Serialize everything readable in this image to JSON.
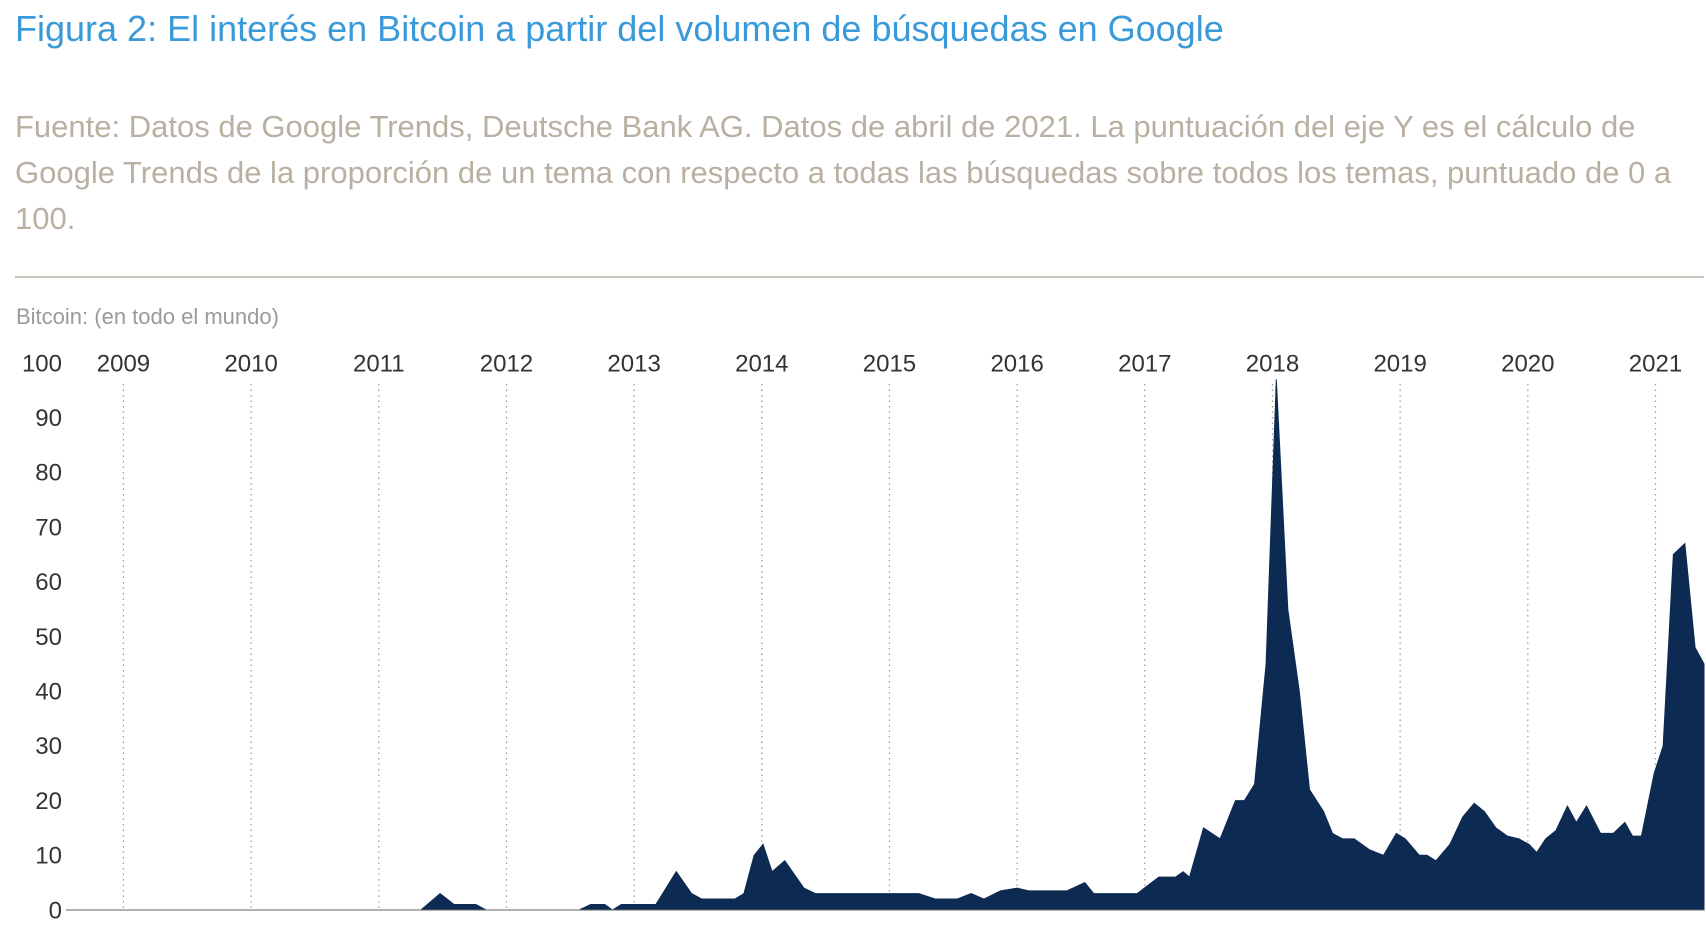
{
  "chart_data": {
    "type": "area",
    "title": "Figura 2: El interés en Bitcoin a partir del volumen de búsquedas en Google",
    "subtitle": "Fuente: Datos de Google Trends, Deutsche Bank AG. Datos de abril de 2021. La puntuación del eje Y es el cálculo de Google Trends de la proporción de un tema con respecto a todas las búsquedas sobre todos los temas, puntuado de 0 a 100.",
    "y_label": "Bitcoin: (en todo el mundo)",
    "color": "#0d2a52",
    "x": [
      2008.55,
      2011.33,
      2011.48,
      2011.59,
      2011.76,
      2011.84,
      2012.57,
      2012.66,
      2012.77,
      2012.83,
      2012.9,
      2013.17,
      2013.33,
      2013.45,
      2013.53,
      2013.79,
      2013.86,
      2013.94,
      2014.01,
      2014.08,
      2014.18,
      2014.33,
      2014.42,
      2015.23,
      2015.36,
      2015.53,
      2015.64,
      2015.74,
      2015.87,
      2016.0,
      2016.09,
      2016.39,
      2016.53,
      2016.6,
      2016.94,
      2017.11,
      2017.24,
      2017.3,
      2017.35,
      2017.46,
      2017.59,
      2017.71,
      2017.78,
      2017.86,
      2017.95,
      2018.03,
      2018.12,
      2018.21,
      2018.29,
      2018.4,
      2018.47,
      2018.55,
      2018.64,
      2018.76,
      2018.87,
      2018.97,
      2019.04,
      2019.15,
      2019.21,
      2019.28,
      2019.39,
      2019.49,
      2019.58,
      2019.66,
      2019.75,
      2019.84,
      2019.93,
      2020.01,
      2020.07,
      2020.14,
      2020.22,
      2020.31,
      2020.38,
      2020.46,
      2020.57,
      2020.67,
      2020.76,
      2020.82,
      2020.89,
      2020.99,
      2021.06,
      2021.14,
      2021.23,
      2021.31,
      2021.38
    ],
    "values": [
      0,
      0,
      3,
      1,
      1,
      0,
      0,
      1,
      1,
      0,
      1,
      1,
      7,
      3,
      2,
      2,
      3,
      10,
      12,
      7,
      9,
      4,
      3,
      3,
      2,
      2,
      3,
      2,
      3.5,
      4,
      3.5,
      3.5,
      5,
      3,
      3,
      6,
      6,
      7,
      6,
      15,
      13,
      20,
      20,
      23,
      45,
      97,
      55,
      40,
      22,
      18,
      14,
      13,
      13,
      11,
      10,
      14,
      13,
      10,
      10,
      9,
      12,
      17,
      19.5,
      18,
      15,
      13.5,
      13,
      12,
      10.5,
      13,
      14.5,
      19,
      16,
      19,
      14,
      14,
      16,
      13.5,
      13.5,
      25,
      30,
      65,
      67,
      48,
      45
    ],
    "xlim": [
      2008.55,
      2021.38
    ],
    "xticks": [
      2009,
      2010,
      2011,
      2012,
      2013,
      2014,
      2015,
      2016,
      2017,
      2018,
      2019,
      2020,
      2021
    ],
    "ylim": [
      0,
      100
    ],
    "yticks": [
      0,
      10,
      20,
      30,
      40,
      50,
      60,
      70,
      80,
      90,
      100
    ],
    "grid": true
  }
}
